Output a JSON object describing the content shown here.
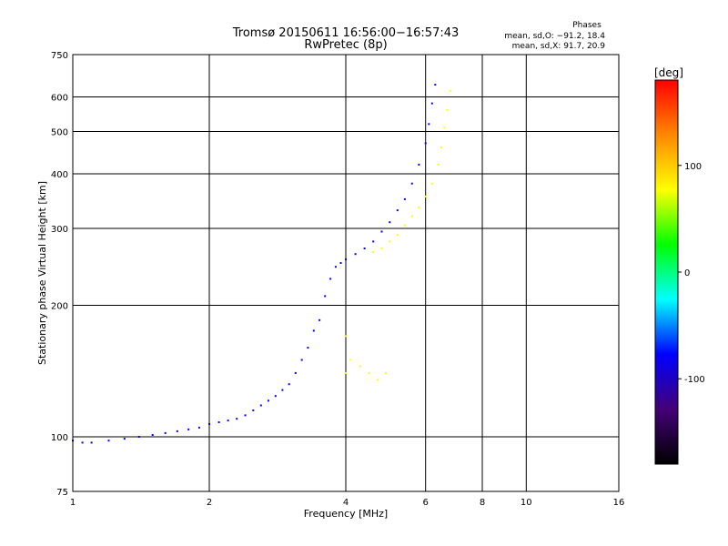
{
  "chart_data": {
    "type": "scatter",
    "title": "Tromsø 20150611 16:56:00−16:57:43",
    "subtitle": "RwPretec (8p)",
    "xlabel": "Frequency [MHz]",
    "ylabel": "Stationary phase Virtual Height [km]",
    "x_scale": "log",
    "y_scale": "log",
    "xlim": [
      1,
      16
    ],
    "ylim": [
      75,
      750
    ],
    "x_ticks": [
      1,
      2,
      4,
      6,
      8,
      10,
      16
    ],
    "y_ticks": [
      75,
      100,
      200,
      300,
      400,
      500,
      600,
      750
    ],
    "grid": true,
    "phase_info": {
      "title": "Phases",
      "line1": "mean, sd,O: −91.2, 18.4",
      "line2": "mean, sd,X:  91.7, 20.9"
    },
    "colorbar": {
      "label": "[deg]",
      "range": [
        -180,
        180
      ],
      "ticks": [
        100,
        0,
        -100
      ],
      "colors": [
        "#ff0000",
        "#ff8800",
        "#ffff00",
        "#00ff00",
        "#00ffff",
        "#0000ff",
        "#440077",
        "#000000"
      ]
    },
    "series": [
      {
        "phase": -100,
        "points": [
          [
            1.0,
            98
          ],
          [
            1.05,
            97
          ],
          [
            1.1,
            97
          ],
          [
            1.2,
            98
          ],
          [
            1.3,
            99
          ],
          [
            1.4,
            100
          ],
          [
            1.5,
            101
          ],
          [
            1.6,
            102
          ],
          [
            1.7,
            103
          ],
          [
            1.8,
            104
          ],
          [
            1.9,
            105
          ],
          [
            2.0,
            107
          ],
          [
            2.1,
            108
          ],
          [
            2.2,
            109
          ],
          [
            2.3,
            110
          ],
          [
            2.4,
            112
          ],
          [
            2.5,
            115
          ],
          [
            2.6,
            118
          ],
          [
            2.7,
            121
          ],
          [
            2.8,
            124
          ],
          [
            2.9,
            128
          ],
          [
            3.0,
            132
          ],
          [
            3.1,
            140
          ],
          [
            3.2,
            150
          ],
          [
            3.3,
            160
          ],
          [
            3.4,
            175
          ],
          [
            3.5,
            185
          ],
          [
            3.6,
            210
          ],
          [
            3.7,
            230
          ],
          [
            3.8,
            245
          ],
          [
            3.9,
            250
          ],
          [
            4.0,
            255
          ],
          [
            4.2,
            262
          ],
          [
            4.4,
            270
          ],
          [
            4.6,
            280
          ],
          [
            4.8,
            295
          ],
          [
            5.0,
            310
          ],
          [
            5.2,
            330
          ],
          [
            5.4,
            350
          ],
          [
            5.6,
            380
          ],
          [
            5.8,
            420
          ],
          [
            6.0,
            470
          ],
          [
            6.1,
            520
          ],
          [
            6.2,
            580
          ],
          [
            6.3,
            640
          ]
        ]
      },
      {
        "phase": 100,
        "points": [
          [
            4.6,
            265
          ],
          [
            4.8,
            270
          ],
          [
            5.0,
            280
          ],
          [
            5.2,
            290
          ],
          [
            5.4,
            305
          ],
          [
            5.6,
            320
          ],
          [
            5.8,
            335
          ],
          [
            6.0,
            355
          ],
          [
            6.2,
            380
          ],
          [
            6.4,
            420
          ],
          [
            6.5,
            460
          ],
          [
            6.6,
            510
          ],
          [
            6.7,
            560
          ],
          [
            6.8,
            620
          ],
          [
            4.0,
            170
          ],
          [
            4.0,
            140
          ],
          [
            4.1,
            150
          ],
          [
            4.3,
            145
          ],
          [
            4.5,
            140
          ],
          [
            4.7,
            135
          ],
          [
            4.9,
            140
          ]
        ]
      }
    ]
  }
}
